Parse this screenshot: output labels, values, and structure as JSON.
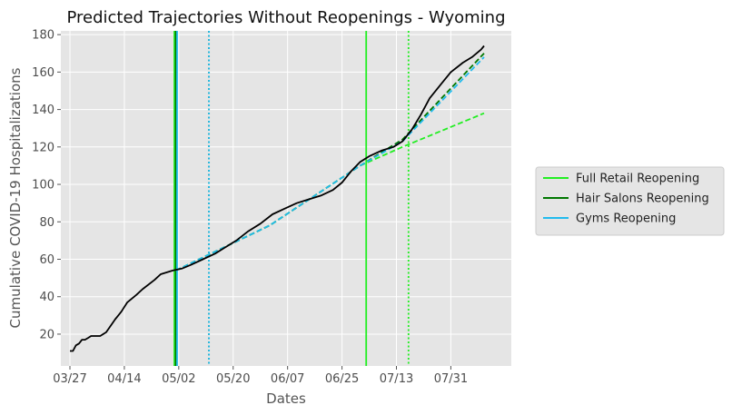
{
  "chart_data": {
    "type": "line",
    "title": "Predicted Trajectories Without Reopenings - Wyoming",
    "xlabel": "Dates",
    "ylabel": "Cumulative COVID-19 Hospitalizations",
    "x_start": "2020-03-27",
    "x_ticks": [
      {
        "date": "2020-03-27",
        "label": "03/27"
      },
      {
        "date": "2020-04-14",
        "label": "04/14"
      },
      {
        "date": "2020-05-02",
        "label": "05/02"
      },
      {
        "date": "2020-05-20",
        "label": "05/20"
      },
      {
        "date": "2020-06-07",
        "label": "06/07"
      },
      {
        "date": "2020-06-25",
        "label": "06/25"
      },
      {
        "date": "2020-07-13",
        "label": "07/13"
      },
      {
        "date": "2020-07-31",
        "label": "07/31"
      }
    ],
    "xlim": [
      "2020-03-24",
      "2020-08-20"
    ],
    "y_ticks": [
      20,
      40,
      60,
      80,
      100,
      120,
      140,
      160,
      180
    ],
    "ylim": [
      3,
      182
    ],
    "grid": true,
    "legend_position": "right-outside",
    "series": [
      {
        "name": "",
        "color": "#000000",
        "style": "solid",
        "points": [
          [
            "2020-03-27",
            11
          ],
          [
            "2020-03-28",
            11
          ],
          [
            "2020-03-29",
            14
          ],
          [
            "2020-03-30",
            15
          ],
          [
            "2020-03-31",
            17
          ],
          [
            "2020-04-01",
            17
          ],
          [
            "2020-04-02",
            18
          ],
          [
            "2020-04-03",
            19
          ],
          [
            "2020-04-06",
            19
          ],
          [
            "2020-04-08",
            21
          ],
          [
            "2020-04-11",
            28
          ],
          [
            "2020-04-13",
            32
          ],
          [
            "2020-04-15",
            37
          ],
          [
            "2020-04-18",
            41
          ],
          [
            "2020-04-20",
            44
          ],
          [
            "2020-04-24",
            49
          ],
          [
            "2020-04-26",
            52
          ],
          [
            "2020-04-30",
            54
          ],
          [
            "2020-05-03",
            55
          ],
          [
            "2020-05-06",
            57
          ],
          [
            "2020-05-10",
            60
          ],
          [
            "2020-05-14",
            63
          ],
          [
            "2020-05-17",
            66
          ],
          [
            "2020-05-21",
            70
          ],
          [
            "2020-05-25",
            75
          ],
          [
            "2020-05-29",
            79
          ],
          [
            "2020-06-02",
            84
          ],
          [
            "2020-06-06",
            87
          ],
          [
            "2020-06-10",
            90
          ],
          [
            "2020-06-14",
            92
          ],
          [
            "2020-06-18",
            94
          ],
          [
            "2020-06-22",
            97
          ],
          [
            "2020-06-25",
            101
          ],
          [
            "2020-06-28",
            107
          ],
          [
            "2020-07-01",
            112
          ],
          [
            "2020-07-04",
            115
          ],
          [
            "2020-07-08",
            118
          ],
          [
            "2020-07-12",
            120
          ],
          [
            "2020-07-15",
            123
          ],
          [
            "2020-07-18",
            129
          ],
          [
            "2020-07-21",
            137
          ],
          [
            "2020-07-24",
            146
          ],
          [
            "2020-07-28",
            154
          ],
          [
            "2020-07-31",
            160
          ],
          [
            "2020-08-04",
            165
          ],
          [
            "2020-08-07",
            168
          ],
          [
            "2020-08-10",
            172
          ],
          [
            "2020-08-11",
            174
          ]
        ]
      },
      {
        "name": "Full Retail Reopening",
        "color": "#22ee22",
        "style": "solid",
        "points": []
      },
      {
        "name": "Hair Salons Reopening",
        "color": "#007700",
        "style": "solid",
        "points": []
      },
      {
        "name": "Gyms Reopening",
        "color": "#22bbee",
        "style": "solid",
        "points": []
      }
    ],
    "projections": [
      {
        "color": "#22ee22",
        "style": "dashed",
        "points": [
          [
            "2020-05-01",
            54
          ],
          [
            "2020-06-01",
            78
          ],
          [
            "2020-07-01",
            110
          ],
          [
            "2020-07-15",
            120
          ],
          [
            "2020-08-11",
            138
          ]
        ]
      },
      {
        "color": "#007700",
        "style": "dashed",
        "points": [
          [
            "2020-05-01",
            54
          ],
          [
            "2020-06-01",
            78
          ],
          [
            "2020-07-01",
            110
          ],
          [
            "2020-07-15",
            124
          ],
          [
            "2020-08-11",
            170
          ]
        ]
      },
      {
        "color": "#22bbee",
        "style": "dashed",
        "points": [
          [
            "2020-05-01",
            54
          ],
          [
            "2020-06-01",
            78
          ],
          [
            "2020-07-01",
            110
          ],
          [
            "2020-07-15",
            123
          ],
          [
            "2020-08-11",
            168
          ]
        ]
      }
    ],
    "vertical_lines": [
      {
        "date": "2020-05-01",
        "color": "#22ee22",
        "style": "solid"
      },
      {
        "date": "2020-05-01",
        "color": "#007700",
        "style": "solid"
      },
      {
        "date": "2020-05-01",
        "color": "#22bbee",
        "style": "solid"
      },
      {
        "date": "2020-05-12",
        "color": "#007700",
        "style": "dotted"
      },
      {
        "date": "2020-05-12",
        "color": "#22bbee",
        "style": "dotted"
      },
      {
        "date": "2020-07-03",
        "color": "#22ee22",
        "style": "solid"
      },
      {
        "date": "2020-07-17",
        "color": "#22ee22",
        "style": "dotted"
      }
    ]
  }
}
